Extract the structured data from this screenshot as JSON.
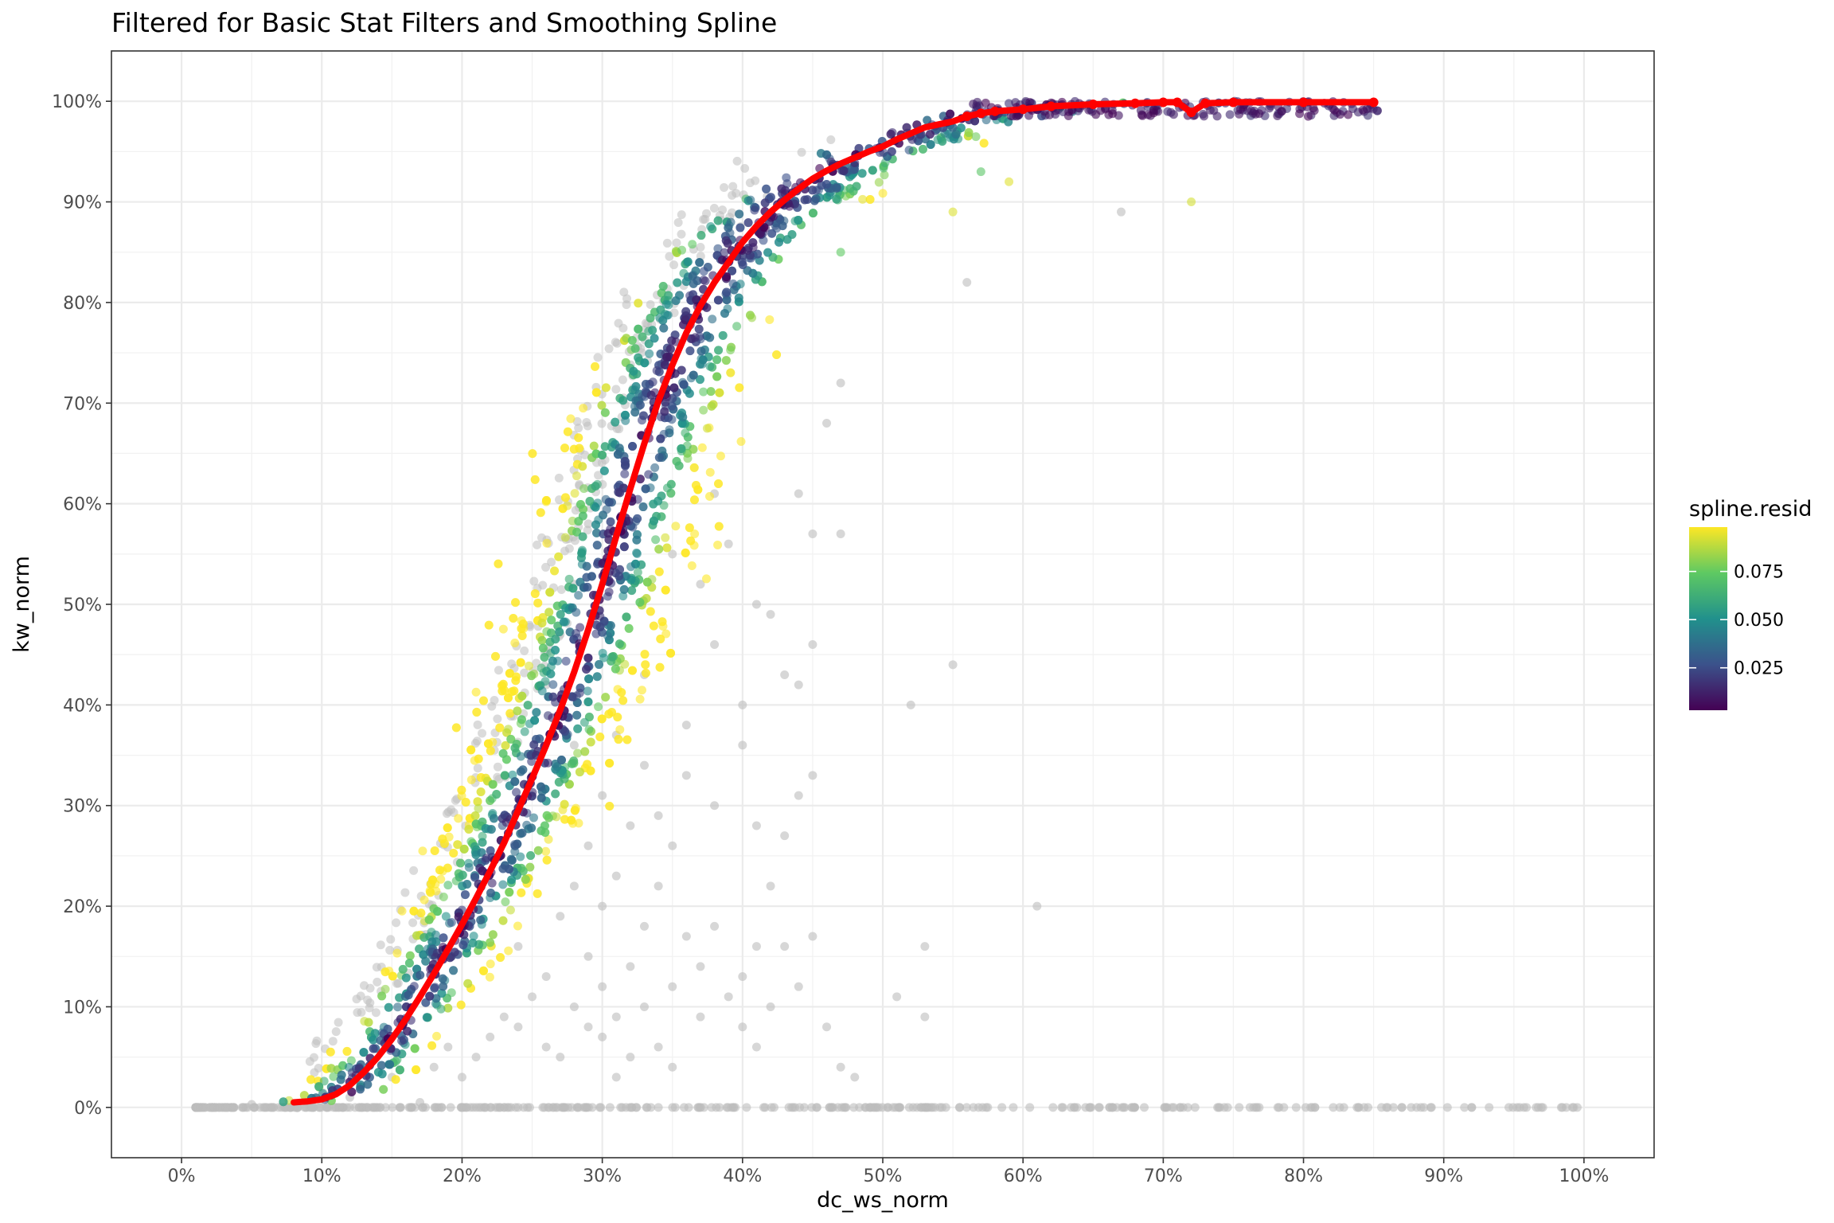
{
  "chart_data": {
    "type": "scatter",
    "title": "Filtered for Basic Stat Filters and Smoothing Spline",
    "xlabel": "dc_ws_norm",
    "ylabel": "kw_norm",
    "xlim": [
      -0.05,
      1.05
    ],
    "ylim": [
      -0.05,
      1.05
    ],
    "x_ticks": [
      0,
      0.1,
      0.2,
      0.3,
      0.4,
      0.5,
      0.6,
      0.7,
      0.8,
      0.9,
      1.0
    ],
    "x_tick_labels": [
      "0%",
      "10%",
      "20%",
      "30%",
      "40%",
      "50%",
      "60%",
      "70%",
      "80%",
      "90%",
      "100%"
    ],
    "y_ticks": [
      0,
      0.1,
      0.2,
      0.3,
      0.4,
      0.5,
      0.6,
      0.7,
      0.8,
      0.9,
      1.0
    ],
    "y_tick_labels": [
      "0%",
      "10%",
      "20%",
      "30%",
      "40%",
      "50%",
      "60%",
      "70%",
      "80%",
      "90%",
      "100%"
    ],
    "grid": true,
    "legend": {
      "title": "spline.resid",
      "position": "right",
      "type": "colorbar",
      "range": [
        0.003,
        0.098
      ],
      "ticks": [
        0.025,
        0.05,
        0.075
      ],
      "tick_labels": [
        "0.025",
        "0.050",
        "0.075"
      ],
      "colors": [
        "#440154",
        "#3b528b",
        "#21918c",
        "#5ec962",
        "#fde725"
      ]
    },
    "colors": {
      "filtered_points": "#bdbdbd",
      "spline": "#ff0000",
      "panel_border": "#333333",
      "grid": "#ebebeb"
    },
    "series": [
      {
        "role": "spline",
        "x": [
          0.08,
          0.09,
          0.1,
          0.11,
          0.12,
          0.13,
          0.14,
          0.15,
          0.16,
          0.17,
          0.18,
          0.19,
          0.2,
          0.21,
          0.22,
          0.23,
          0.24,
          0.25,
          0.26,
          0.27,
          0.28,
          0.29,
          0.3,
          0.31,
          0.32,
          0.33,
          0.34,
          0.35,
          0.36,
          0.37,
          0.38,
          0.39,
          0.4,
          0.41,
          0.42,
          0.43,
          0.44,
          0.45,
          0.46,
          0.47,
          0.48,
          0.49,
          0.5,
          0.51,
          0.52,
          0.53,
          0.54,
          0.55,
          0.56,
          0.57,
          0.58,
          0.6,
          0.62,
          0.65,
          0.68,
          0.7,
          0.71,
          0.72,
          0.73,
          0.75,
          0.8,
          0.85
        ],
        "y": [
          0.005,
          0.006,
          0.008,
          0.013,
          0.022,
          0.035,
          0.05,
          0.068,
          0.088,
          0.11,
          0.133,
          0.157,
          0.182,
          0.208,
          0.235,
          0.263,
          0.295,
          0.327,
          0.36,
          0.395,
          0.433,
          0.475,
          0.52,
          0.568,
          0.615,
          0.66,
          0.702,
          0.738,
          0.77,
          0.797,
          0.82,
          0.84,
          0.86,
          0.876,
          0.89,
          0.902,
          0.913,
          0.923,
          0.931,
          0.938,
          0.944,
          0.95,
          0.955,
          0.962,
          0.968,
          0.974,
          0.977,
          0.98,
          0.985,
          0.988,
          0.99,
          0.992,
          0.995,
          0.997,
          0.998,
          0.999,
          0.999,
          0.989,
          0.998,
          0.999,
          0.999,
          0.999
        ]
      }
    ],
    "filtered_zero_band": {
      "x": [
        0.01,
        1.0
      ],
      "y": 0
    },
    "filtered_outliers": [
      [
        0.05,
        0.003
      ],
      [
        0.12,
        0.01
      ],
      [
        0.15,
        0.03
      ],
      [
        0.17,
        0.005
      ],
      [
        0.18,
        0.04
      ],
      [
        0.19,
        0.06
      ],
      [
        0.2,
        0.03
      ],
      [
        0.21,
        0.05
      ],
      [
        0.22,
        0.07
      ],
      [
        0.23,
        0.09
      ],
      [
        0.24,
        0.08
      ],
      [
        0.24,
        0.16
      ],
      [
        0.25,
        0.11
      ],
      [
        0.25,
        0.33
      ],
      [
        0.26,
        0.06
      ],
      [
        0.26,
        0.13
      ],
      [
        0.26,
        0.42
      ],
      [
        0.27,
        0.19
      ],
      [
        0.27,
        0.05
      ],
      [
        0.27,
        0.47
      ],
      [
        0.28,
        0.1
      ],
      [
        0.28,
        0.22
      ],
      [
        0.28,
        0.36
      ],
      [
        0.28,
        0.52
      ],
      [
        0.29,
        0.08
      ],
      [
        0.29,
        0.15
      ],
      [
        0.29,
        0.26
      ],
      [
        0.29,
        0.58
      ],
      [
        0.3,
        0.12
      ],
      [
        0.3,
        0.2
      ],
      [
        0.3,
        0.07
      ],
      [
        0.3,
        0.31
      ],
      [
        0.31,
        0.03
      ],
      [
        0.31,
        0.09
      ],
      [
        0.31,
        0.23
      ],
      [
        0.31,
        0.37
      ],
      [
        0.32,
        0.14
      ],
      [
        0.32,
        0.28
      ],
      [
        0.32,
        0.05
      ],
      [
        0.33,
        0.18
      ],
      [
        0.33,
        0.34
      ],
      [
        0.33,
        0.1
      ],
      [
        0.33,
        0.43
      ],
      [
        0.34,
        0.22
      ],
      [
        0.34,
        0.06
      ],
      [
        0.34,
        0.29
      ],
      [
        0.35,
        0.12
      ],
      [
        0.35,
        0.26
      ],
      [
        0.35,
        0.04
      ],
      [
        0.35,
        0.55
      ],
      [
        0.36,
        0.17
      ],
      [
        0.36,
        0.38
      ],
      [
        0.36,
        0.33
      ],
      [
        0.37,
        0.14
      ],
      [
        0.37,
        0.09
      ],
      [
        0.37,
        0.52
      ],
      [
        0.38,
        0.18
      ],
      [
        0.38,
        0.3
      ],
      [
        0.38,
        0.46
      ],
      [
        0.38,
        0.61
      ],
      [
        0.39,
        0.11
      ],
      [
        0.39,
        0.56
      ],
      [
        0.4,
        0.08
      ],
      [
        0.4,
        0.36
      ],
      [
        0.4,
        0.4
      ],
      [
        0.4,
        0.13
      ],
      [
        0.41,
        0.5
      ],
      [
        0.41,
        0.28
      ],
      [
        0.41,
        0.16
      ],
      [
        0.41,
        0.06
      ],
      [
        0.42,
        0.49
      ],
      [
        0.42,
        0.22
      ],
      [
        0.42,
        0.1
      ],
      [
        0.43,
        0.43
      ],
      [
        0.43,
        0.27
      ],
      [
        0.43,
        0.16
      ],
      [
        0.44,
        0.42
      ],
      [
        0.44,
        0.31
      ],
      [
        0.44,
        0.12
      ],
      [
        0.44,
        0.61
      ],
      [
        0.45,
        0.57
      ],
      [
        0.45,
        0.46
      ],
      [
        0.45,
        0.33
      ],
      [
        0.45,
        0.17
      ],
      [
        0.46,
        0.68
      ],
      [
        0.46,
        0.08
      ],
      [
        0.47,
        0.72
      ],
      [
        0.47,
        0.57
      ],
      [
        0.47,
        0.04
      ],
      [
        0.48,
        0.03
      ],
      [
        0.51,
        0.11
      ],
      [
        0.52,
        0.4
      ],
      [
        0.53,
        0.09
      ],
      [
        0.53,
        0.16
      ],
      [
        0.55,
        0.44
      ],
      [
        0.56,
        0.82
      ],
      [
        0.61,
        0.2
      ],
      [
        0.67,
        0.89
      ]
    ],
    "colored_cloud_note": "dense scatter band around the spline, colored by spline.resid",
    "high_resid_outliers": [
      [
        0.72,
        0.9
      ],
      [
        0.47,
        0.85
      ],
      [
        0.55,
        0.89
      ],
      [
        0.59,
        0.92
      ],
      [
        0.57,
        0.93
      ]
    ]
  }
}
